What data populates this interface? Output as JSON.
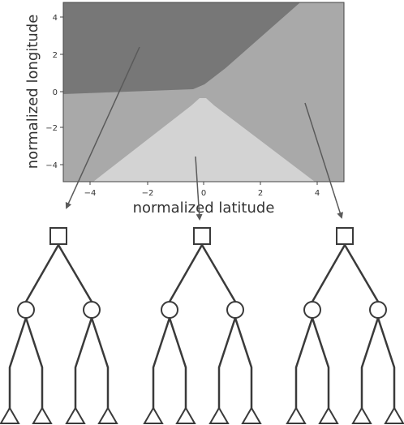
{
  "chart_data": {
    "type": "heatmap",
    "xlabel": "normalized latitude",
    "ylabel": "normalized longitude",
    "xlim": [
      -5,
      5
    ],
    "ylim": [
      -5.2,
      5
    ],
    "xticks": [
      "−4",
      "−2",
      "0",
      "2",
      "4"
    ],
    "yticks": [
      "4",
      "2",
      "0",
      "−2",
      "−4"
    ],
    "regions": [
      {
        "name": "upper-left",
        "color": "#777777"
      },
      {
        "name": "middle-band",
        "color": "#a9a9a9"
      },
      {
        "name": "lower-wedge",
        "color": "#d3d3d3"
      }
    ]
  },
  "diagram": {
    "trees": 3,
    "root_shape": "square",
    "inner_shape": "circle",
    "leaf_shape": "triangle",
    "stroke_color": "#3a3a3a",
    "arrow_color": "#5a5a5a"
  }
}
